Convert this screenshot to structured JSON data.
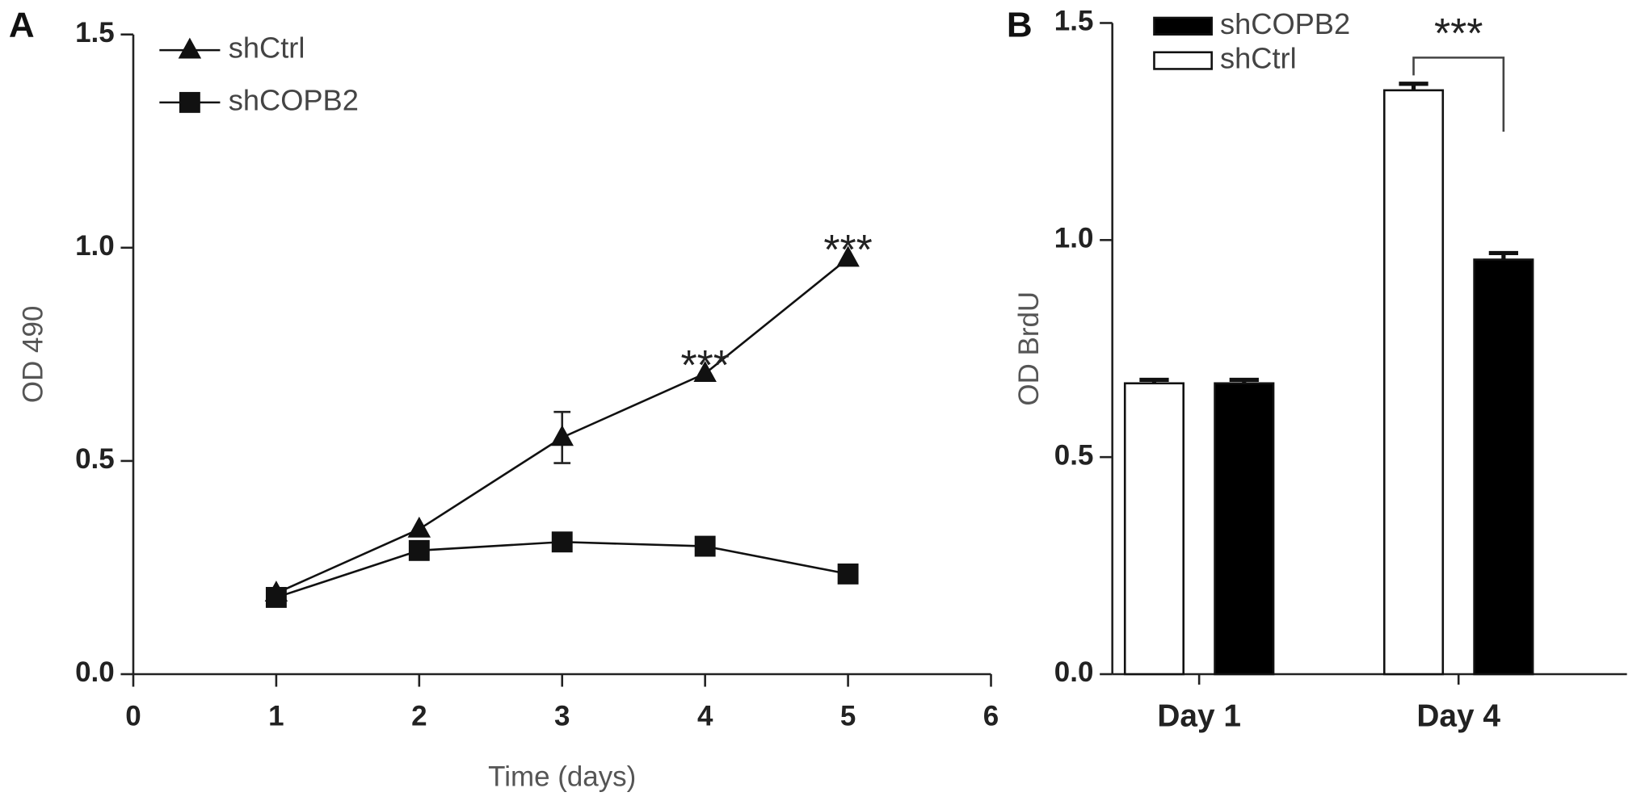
{
  "chart_data": [
    {
      "type": "line",
      "panel": "A",
      "x_label": "Time (days)",
      "y_label": "OD 490",
      "x": [
        1,
        2,
        3,
        4,
        5
      ],
      "series": [
        {
          "name": "shCtrl",
          "color": "#111111",
          "marker": "triangle",
          "values": [
            0.19,
            0.34,
            0.555,
            0.705,
            0.975
          ],
          "errors": [
            null,
            null,
            0.06,
            null,
            null
          ]
        },
        {
          "name": "shCOPB2",
          "color": "#111111",
          "marker": "square",
          "values": [
            0.18,
            0.29,
            0.31,
            0.3,
            0.235
          ],
          "errors": [
            null,
            null,
            null,
            null,
            null
          ]
        }
      ],
      "annotations": [
        {
          "text": "***",
          "x": 4
        },
        {
          "text": "***",
          "x": 5
        }
      ],
      "xlim": [
        0,
        6
      ],
      "xticks": [
        0,
        1,
        2,
        3,
        4,
        5,
        6
      ],
      "ylim": [
        0,
        1.5
      ],
      "yticks": [
        {
          "value": 0,
          "label": "0.0"
        },
        0.5,
        {
          "value": 1,
          "label": "1.0"
        },
        1.5
      ],
      "legend": "upper left"
    },
    {
      "type": "bar",
      "panel": "B",
      "y_label": "OD BrdU",
      "categories": [
        "Day 1",
        "Day 4"
      ],
      "series": [
        {
          "name": "shCOPB2",
          "color": "#000000",
          "values": [
            0.67,
            0.955
          ],
          "errors": [
            0.008,
            0.015
          ]
        },
        {
          "name": "shCtrl",
          "color": "#ffffff",
          "values": [
            0.67,
            1.345
          ],
          "errors": [
            0.008,
            0.015
          ]
        }
      ],
      "bar_order": [
        1,
        0
      ],
      "annotation": "***",
      "ylim": [
        0,
        1.5
      ],
      "yticks": [
        {
          "value": 0,
          "label": "0.0"
        },
        0.5,
        {
          "value": 1,
          "label": "1.0"
        },
        1.5
      ],
      "legend": "upper left"
    }
  ]
}
